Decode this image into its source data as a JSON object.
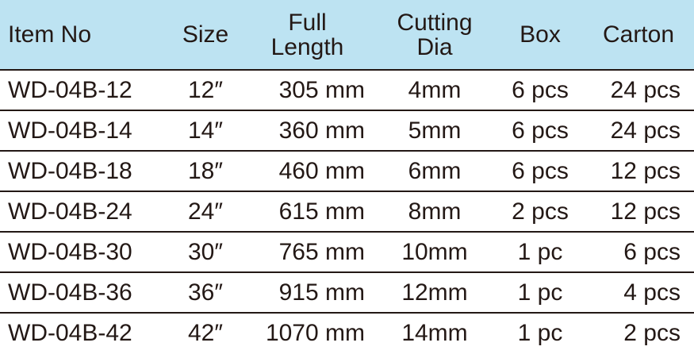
{
  "header": [
    "Item No",
    "Size",
    "Full\nLength",
    "Cutting\nDia",
    "Box",
    "Carton"
  ],
  "rows": [
    [
      "WD-04B-12",
      "12″",
      "305 mm",
      "4mm",
      "6 pcs",
      "24 pcs"
    ],
    [
      "WD-04B-14",
      "14″",
      "360 mm",
      "5mm",
      "6 pcs",
      "24 pcs"
    ],
    [
      "WD-04B-18",
      "18″",
      "460 mm",
      "6mm",
      "6 pcs",
      "12 pcs"
    ],
    [
      "WD-04B-24",
      "24″",
      "615 mm",
      "8mm",
      "2 pcs",
      "12 pcs"
    ],
    [
      "WD-04B-30",
      "30″",
      "765 mm",
      "10mm",
      "1 pc",
      "6 pcs"
    ],
    [
      "WD-04B-36",
      "36″",
      "915 mm",
      "12mm",
      "1 pc",
      "4 pcs"
    ],
    [
      "WD-04B-42",
      "42″",
      "1070 mm",
      "14mm",
      "1 pc",
      "2 pcs"
    ]
  ],
  "colors": {
    "header_bg": "#bde3f2",
    "text": "#231815",
    "rule": "#231815"
  }
}
